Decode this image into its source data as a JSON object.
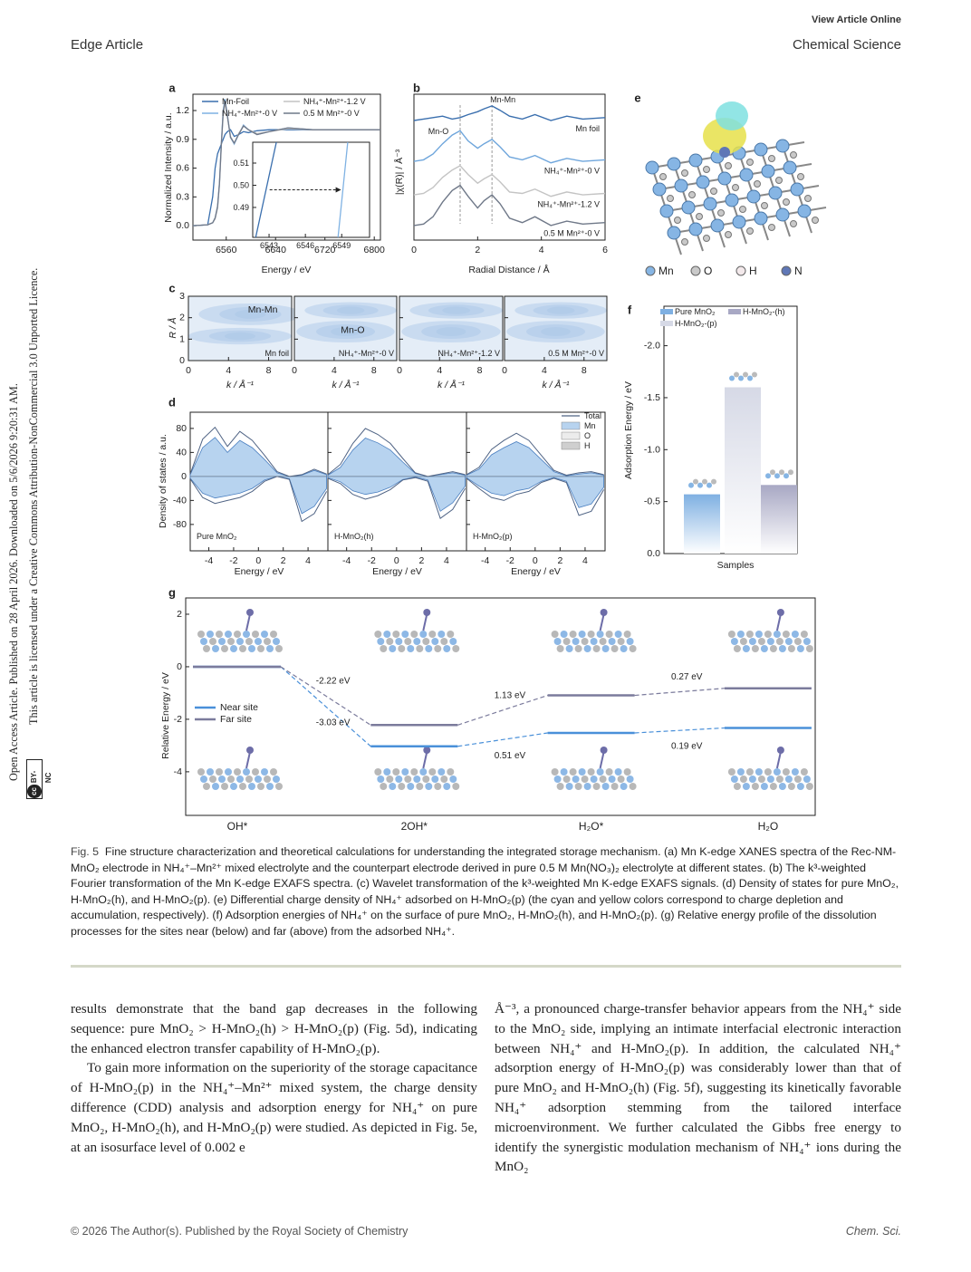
{
  "header": {
    "view_online": "View Article Online",
    "left": "Edge Article",
    "right": "Chemical Science"
  },
  "sidebar": {
    "line1": "Open Access Article. Published on 28 April 2026. Downloaded on 5/6/2026 9:20:31 AM.",
    "line2": "This article is licensed under a Creative Commons Attribution-NonCommercial 3.0 Unported Licence.",
    "badge_icon": "cc",
    "badge_text": "BY-NC"
  },
  "figure": {
    "a": {
      "letter": "a",
      "xlabel": "Energy / eV",
      "ylabel": "Normalized Intensity / a.u.",
      "xlim": [
        6506,
        6810
      ],
      "ylim": [
        -0.15,
        1.37
      ],
      "xticks": [
        6560,
        6640,
        6720,
        6800
      ],
      "yticks": [
        {
          "value": 0,
          "label": "0.0"
        },
        0.3,
        0.6,
        0.9,
        1.2
      ],
      "x": [
        6506,
        6530,
        6538,
        6542,
        6546,
        6549,
        6552,
        6555,
        6558,
        6562,
        6567,
        6573,
        6580,
        6588,
        6596,
        6610,
        6630,
        6660,
        6700,
        6750,
        6810
      ],
      "series": [
        {
          "name": "Mn-Foil",
          "color": "#3a6fae",
          "values": [
            0.0,
            0.01,
            0.3,
            0.6,
            0.75,
            0.8,
            0.85,
            0.9,
            0.95,
            0.98,
            1.0,
            0.93,
            0.95,
            0.98,
            0.97,
            0.99,
            1.0,
            1.0,
            1.0,
            1.0,
            1.0
          ]
        },
        {
          "name": "NH₄⁺-Mn²⁺-0 V",
          "color": "#7fb2e3",
          "values": [
            0.0,
            0.01,
            0.03,
            0.08,
            0.2,
            0.45,
            0.85,
            1.2,
            1.32,
            1.15,
            0.92,
            0.85,
            0.95,
            1.05,
            1.0,
            0.95,
            0.98,
            1.02,
            1.0,
            1.0,
            1.0
          ]
        },
        {
          "name": "NH₄⁺-Mn²⁺-1.2 V",
          "color": "#c4c4c4",
          "values": [
            0.0,
            0.01,
            0.03,
            0.07,
            0.18,
            0.43,
            0.82,
            1.15,
            1.28,
            1.13,
            0.93,
            0.86,
            0.96,
            1.04,
            1.0,
            0.96,
            0.98,
            1.01,
            1.0,
            1.0,
            1.0
          ]
        },
        {
          "name": "0.5 M Mn²⁺-0 V",
          "color": "#6f7888",
          "values": [
            0.0,
            0.01,
            0.03,
            0.08,
            0.2,
            0.44,
            0.84,
            1.18,
            1.3,
            1.14,
            0.92,
            0.86,
            0.95,
            1.04,
            1.0,
            0.95,
            0.98,
            1.02,
            1.0,
            1.0,
            1.0
          ]
        }
      ],
      "inset": {
        "xlim": [
          6541.65,
          6551.3
        ],
        "ylim": [
          0.4765,
          0.5194
        ],
        "xticks": [
          6543,
          6546,
          6549
        ],
        "yticks": [
          0.49,
          {
            "value": 0.5,
            "label": "0.50"
          },
          0.51
        ],
        "series": [
          {
            "color": "#3a6fae",
            "x": [
              6541.9,
              6543.6
            ],
            "values": [
              0.4765,
              0.5194
            ]
          },
          {
            "color": "#7fb2e3",
            "x": [
              6548.7,
              6549.5
            ],
            "values": [
              0.4765,
              0.5194
            ]
          }
        ]
      }
    },
    "b": {
      "letter": "b",
      "xlabel": "Radial Distance / Å",
      "ylabel": "|χ(R)| / Å⁻³",
      "xlim": [
        0,
        6
      ],
      "ylim": [
        0,
        10
      ],
      "xticks": [
        0,
        2,
        4,
        6
      ],
      "ref_lines": [
        1.45,
        2.45
      ],
      "ref_labels": [
        "Mn-O",
        "Mn-Mn"
      ],
      "x": [
        0,
        0.3,
        0.6,
        0.9,
        1.2,
        1.45,
        1.7,
        2.0,
        2.2,
        2.45,
        2.7,
        3.0,
        3.4,
        3.8,
        4.3,
        4.8,
        5.3,
        6.0
      ],
      "series": [
        {
          "name": "Mn foil",
          "color": "#3a6fae",
          "values": [
            8.2,
            8.3,
            8.4,
            8.5,
            8.3,
            8.4,
            8.6,
            8.8,
            9.0,
            9.2,
            8.9,
            8.5,
            8.3,
            8.6,
            8.2,
            8.5,
            8.3,
            8.4
          ]
        },
        {
          "name": "NH₄⁺-Mn²⁺-0 V",
          "color": "#6fa6dc",
          "values": [
            5.4,
            5.5,
            5.9,
            6.6,
            7.2,
            7.5,
            6.8,
            6.3,
            6.6,
            6.9,
            6.4,
            5.7,
            5.5,
            5.8,
            5.3,
            5.6,
            5.4,
            5.5
          ]
        },
        {
          "name": "NH₄⁺-Mn²⁺-1.2 V",
          "color": "#c4c4c4",
          "values": [
            3.1,
            3.2,
            3.6,
            4.3,
            4.8,
            5.1,
            4.5,
            3.9,
            4.2,
            4.5,
            4.0,
            3.3,
            3.2,
            3.5,
            3.0,
            3.3,
            3.1,
            3.2
          ]
        },
        {
          "name": "0.5 M Mn²⁺-0 V",
          "color": "#6f7888",
          "values": [
            1.0,
            1.1,
            1.6,
            2.6,
            3.4,
            3.75,
            3.0,
            2.2,
            2.7,
            3.1,
            2.5,
            1.5,
            1.2,
            1.6,
            1.0,
            1.3,
            1.1,
            1.2
          ]
        }
      ]
    },
    "c": {
      "letter": "c",
      "xlabel": "k / Å⁻¹",
      "ylabel": "R / Å",
      "xlim": [
        0,
        10.3
      ],
      "ylim": [
        0,
        3
      ],
      "xticks": [
        0,
        4,
        8
      ],
      "yticks": [
        0,
        1,
        2,
        3
      ],
      "maps": [
        {
          "label": "Mn foil",
          "feature": "Mn-Mn"
        },
        {
          "label": "NH₄⁺-Mn²⁺-0 V",
          "feature": "Mn-O"
        },
        {
          "label": "NH₄⁺-Mn²⁺-1.2 V"
        },
        {
          "label": "0.5 M Mn²⁺-0 V"
        }
      ]
    },
    "d": {
      "letter": "d",
      "xlabel": "Energy / eV",
      "ylabel": "Density of states / a.u.",
      "xlim": [
        -5.5,
        5.6
      ],
      "ylim": [
        -124,
        107
      ],
      "xticks": [
        -4,
        -2,
        0,
        2,
        4
      ],
      "yticks": [
        80,
        40,
        0,
        -40,
        -80
      ],
      "x": [
        -5.5,
        -4.5,
        -3.5,
        -2.5,
        -1.5,
        -0.5,
        0.5,
        1.5,
        2.5,
        3.5,
        4.5,
        5.5
      ],
      "legend": [
        {
          "name": "Total",
          "color": "#4f6384"
        },
        {
          "name": "Mn",
          "color": "#b7d3ef"
        },
        {
          "name": "O",
          "color": "#ececec"
        },
        {
          "name": "H",
          "color": "#cfcfcf"
        }
      ],
      "panels": [
        {
          "label": "Pure MnO₂",
          "total_up": [
            4,
            62,
            82,
            50,
            75,
            60,
            35,
            8,
            0,
            3,
            12,
            4
          ],
          "total_down": [
            -4,
            -35,
            -45,
            -40,
            -35,
            -25,
            -8,
            0,
            -5,
            -75,
            -62,
            -25
          ],
          "mn_up": [
            3,
            48,
            65,
            40,
            60,
            48,
            28,
            6,
            0,
            2,
            10,
            3
          ],
          "mn_down": [
            -3,
            -28,
            -36,
            -32,
            -28,
            -20,
            -6,
            0,
            -4,
            -62,
            -50,
            -20
          ]
        },
        {
          "label": "H-MnO₂(h)",
          "total_up": [
            3,
            20,
            55,
            80,
            70,
            55,
            30,
            6,
            0,
            4,
            8,
            3
          ],
          "total_down": [
            -3,
            -12,
            -30,
            -38,
            -32,
            -22,
            -6,
            -2,
            -8,
            -70,
            -55,
            -20
          ],
          "mn_up": [
            2,
            15,
            44,
            64,
            56,
            44,
            24,
            5,
            0,
            3,
            6,
            2
          ],
          "mn_down": [
            -2,
            -9,
            -24,
            -30,
            -26,
            -18,
            -5,
            -1,
            -6,
            -58,
            -44,
            -16
          ]
        },
        {
          "label": "H-MnO₂(p)",
          "total_up": [
            3,
            15,
            45,
            60,
            72,
            60,
            35,
            10,
            2,
            6,
            8,
            3
          ],
          "total_down": [
            -3,
            -20,
            -35,
            -40,
            -30,
            -25,
            -10,
            -3,
            -10,
            -65,
            -58,
            -22
          ],
          "mn_up": [
            2,
            12,
            36,
            48,
            58,
            48,
            28,
            8,
            1,
            4,
            6,
            2
          ],
          "mn_down": [
            -2,
            -16,
            -28,
            -32,
            -24,
            -20,
            -8,
            -2,
            -8,
            -52,
            -46,
            -18
          ]
        }
      ]
    },
    "e": {
      "letter": "e",
      "atoms": [
        {
          "name": "Mn",
          "color": "#86b5e4"
        },
        {
          "name": "O",
          "color": "#c9c9c9"
        },
        {
          "name": "H",
          "color": "#f3e9eb"
        },
        {
          "name": "N",
          "color": "#5f77b6"
        }
      ]
    },
    "f": {
      "letter": "f",
      "type": "bar",
      "xlabel": "Samples",
      "ylabel": "Adsorption Energy / eV",
      "ylim": [
        0,
        -2.38
      ],
      "yticks": [
        {
          "value": 0,
          "label": "0.0"
        },
        -0.5,
        {
          "value": -1,
          "label": "-1.0"
        },
        -1.5,
        {
          "value": -2,
          "label": "-2.0"
        }
      ],
      "series": [
        {
          "name": "Pure MnO₂",
          "color": "#7fb0e2",
          "values": [
            -0.57
          ]
        },
        {
          "name": "H-MnO₂-(p)",
          "color": "#d6d9e6",
          "values": [
            -1.6
          ]
        },
        {
          "name": "H-MnO₂-(h)",
          "color": "#a8a8c4",
          "values": [
            -0.66
          ]
        }
      ]
    },
    "g": {
      "letter": "g",
      "ylabel": "Relative Energy / eV",
      "ylim": [
        -5.66,
        2.62
      ],
      "yticks": [
        2,
        0,
        -2,
        -4
      ],
      "categories": [
        "OH*",
        "2OH*",
        "H₂O*",
        "H₂O"
      ],
      "series": [
        {
          "name": "Near site",
          "color": "#4a90d9",
          "values": [
            0,
            -3.03,
            -2.52,
            -2.33
          ],
          "step_labels": [
            "-3.03 eV",
            "0.51 eV",
            "0.19 eV"
          ]
        },
        {
          "name": "Far site",
          "color": "#7b7b9c",
          "values": [
            0,
            -2.22,
            -1.09,
            -0.82
          ],
          "step_labels": [
            "-2.22 eV",
            "1.13 eV",
            "0.27 eV"
          ]
        }
      ]
    }
  },
  "caption": {
    "label": "Fig. 5",
    "text": "Fine structure characterization and theoretical calculations for understanding the integrated storage mechanism. (a) Mn K-edge XANES spectra of the Rec-NM-MnO₂ electrode in NH₄⁺–Mn²⁺ mixed electrolyte and the counterpart electrode derived in pure 0.5 M Mn(NO₃)₂ electrolyte at different states. (b) The k³-weighted Fourier transformation of the Mn K-edge EXAFS spectra. (c) Wavelet transformation of the k³-weighted Mn K-edge EXAFS signals. (d) Density of states for pure MnO₂, H-MnO₂(h), and H-MnO₂(p). (e) Differential charge density of NH₄⁺ adsorbed on H-MnO₂(p) (the cyan and yellow colors correspond to charge depletion and accumulation, respectively). (f) Adsorption energies of NH₄⁺ on the surface of pure MnO₂, H-MnO₂(h), and H-MnO₂(p). (g) Relative energy profile of the dissolution processes for the sites near (below) and far (above) from the adsorbed NH₄⁺."
  },
  "body": {
    "left": [
      "results demonstrate that the band gap decreases in the following sequence: pure MnO₂ > H-MnO₂(h) > H-MnO₂(p) (Fig. 5d), indicating the enhanced electron transfer capability of H-MnO₂(p).",
      "To gain more information on the superiority of the storage capacitance of H-MnO₂(p) in the NH₄⁺–Mn²⁺ mixed system, the charge density difference (CDD) analysis and adsorption energy for NH₄⁺ on pure MnO₂, H-MnO₂(h), and H-MnO₂(p) were studied. As depicted in Fig. 5e, at an isosurface level of 0.002 e"
    ],
    "right": [
      "Å⁻³, a pronounced charge-transfer behavior appears from the NH₄⁺ side to the MnO₂ side, implying an intimate interfacial electronic interaction between NH₄⁺ and H-MnO₂(p). In addition, the calculated NH₄⁺ adsorption energy of H-MnO₂(p) was considerably lower than that of pure MnO₂ and H-MnO₂(h) (Fig. 5f), suggesting its kinetically favorable NH₄⁺ adsorption stemming from the tailored interface microenvironment. We further calculated the Gibbs free energy to identify the synergistic modulation mechanism of NH₄⁺ ions during the MnO₂"
    ]
  },
  "footer": {
    "left": "© 2026 The Author(s). Published by the Royal Society of Chemistry",
    "right": "Chem. Sci."
  }
}
